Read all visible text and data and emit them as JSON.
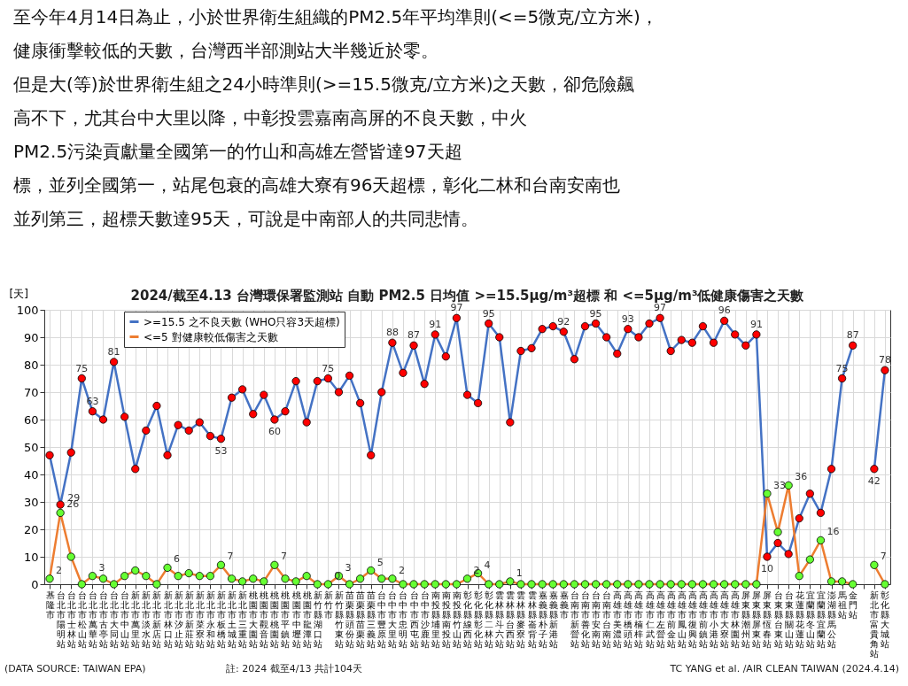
{
  "chart_data": {
    "type": "line",
    "title": "2024/截至4.13 台灣環保署監測站 自動 PM2.5 日均值 >=15.5μg/m³超標 和 <=5μg/m³低健康傷害之天數",
    "subtitle": [
      "至今年4月14日為止，小於世界衛生組織的PM2.5年平均準則(<=5微克/立方米)，",
      "健康衝擊較低的天數，台灣西半部測站大半幾近於零。",
      "但是大(等)於世界衛生組之24小時準則(>=15.5微克/立方米)之天數，卻危險飆",
      "高不下，尤其台中大里以降，中彰投雲嘉南高屏的不良天數，中火",
      "PM2.5污染貢獻量全國第一的竹山和高雄左營皆達97天超",
      "標，並列全國第一，站尾包衰的高雄大寮有96天超標，彰化二林和台南安南也",
      "並列第三，超標天數達95天，可說是中南部人的共同悲情。"
    ],
    "ylabel": "[天]",
    "categories": [
      "基隆市",
      "台北市陽明站",
      "台北市士林站",
      "台北市松山站",
      "台北市萬華站",
      "台北市古亭站",
      "台北市大同站",
      "台北市中山站",
      "新北市萬里站",
      "新北市淡水站",
      "新北市新店站",
      "新北市林口站",
      "新北市汐止站",
      "新北市新莊站",
      "新北市菜寮站",
      "新北市永和站",
      "新北市板橋站",
      "新北市土城站",
      "新北市三重站",
      "桃園市大園站",
      "桃園市觀音站",
      "桃園市桃園站",
      "桃園市平鎮站",
      "桃園市中壢站",
      "桃園市龍潭站",
      "新竹縣湖口站",
      "新竹市",
      "新竹縣竹東站",
      "苗栗縣頭份站",
      "苗栗縣苗栗站",
      "苗栗縣三義站",
      "台中市豐原站",
      "台中市大里站",
      "台中市忠明站",
      "台中市西屯站",
      "台中市沙鹿站",
      "南投縣埔里站",
      "南投縣南投站",
      "南投縣竹山站",
      "彰化縣線西站",
      "彰化縣彰化站",
      "彰化縣二林站",
      "雲林縣斗六站",
      "雲林縣台西站",
      "雲林縣麥寮站",
      "雲林縣崙背站",
      "嘉義縣朴子站",
      "嘉義縣新港站",
      "嘉義市",
      "台南市新營站",
      "台南市善化站",
      "台南市安南站",
      "台南市台南站",
      "高雄市美濃站",
      "高雄市橋頭站",
      "高雄市楠梓站",
      "高雄市仁武站",
      "高雄市左營站",
      "高雄市前金站",
      "高雄市鳳山站",
      "高雄市復興站",
      "高雄市前鎮站",
      "高雄市小港站",
      "高雄市大寮站",
      "高雄市林園站",
      "屏東縣潮州站",
      "屏東縣屏東站",
      "屏東縣恆春站",
      "台東縣台東站",
      "台東縣關山站",
      "花蓮縣花蓮站",
      "宜蘭縣冬山站",
      "宜蘭縣宜蘭站",
      "澎湖縣馬公站",
      "馬祖站",
      "金門站",
      null,
      "新北市富貴角站",
      "彰化縣大城站"
    ],
    "series": [
      {
        "name": ">=15.5 之不良天數 (WHO只容3天超標)",
        "color": "#4472c4",
        "values": [
          47,
          29,
          48,
          75,
          63,
          60,
          81,
          61,
          42,
          56,
          65,
          47,
          58,
          56,
          59,
          54,
          53,
          68,
          71,
          62,
          69,
          60,
          63,
          74,
          59,
          74,
          75,
          70,
          76,
          66,
          47,
          70,
          88,
          77,
          87,
          73,
          91,
          83,
          97,
          69,
          66,
          95,
          90,
          59,
          85,
          86,
          93,
          94,
          92,
          82,
          94,
          95,
          90,
          84,
          93,
          90,
          95,
          97,
          85,
          89,
          88,
          94,
          88,
          96,
          91,
          87,
          91,
          10,
          15,
          11,
          24,
          33,
          26,
          42,
          75,
          87,
          null,
          42,
          78
        ],
        "value_labels": [
          null,
          "29",
          null,
          "75",
          "63",
          null,
          "81",
          null,
          null,
          null,
          null,
          null,
          null,
          null,
          null,
          null,
          "53",
          null,
          null,
          null,
          null,
          "60",
          null,
          null,
          null,
          null,
          "75",
          null,
          null,
          null,
          null,
          null,
          "88",
          null,
          "87",
          null,
          "91",
          null,
          "97",
          null,
          null,
          "95",
          null,
          null,
          null,
          null,
          null,
          null,
          "92",
          null,
          null,
          "95",
          null,
          null,
          "93",
          null,
          null,
          "97",
          null,
          null,
          null,
          null,
          null,
          "96",
          null,
          null,
          "91",
          "10",
          null,
          null,
          null,
          null,
          null,
          null,
          "75",
          "87",
          null,
          "42",
          "78"
        ],
        "colors": [
          "#ff0000",
          "#ff0000",
          "#ff0000",
          "#ff0000",
          "#ff0000",
          "#ff0000",
          "#ff0000",
          "#ff0000",
          "#ff0000",
          "#ff0000",
          "#ff0000",
          "#ff0000",
          "#ff0000",
          "#ff0000",
          "#ff0000",
          "#ff0000",
          "#ff0000",
          "#ff0000",
          "#ff0000",
          "#ff0000",
          "#ff0000",
          "#ff0000",
          "#ff0000",
          "#ff0000",
          "#ff0000",
          "#ff0000",
          "#ff0000",
          "#ff0000",
          "#ff0000",
          "#ff0000",
          "#ff0000",
          "#ff0000",
          "#ff0000",
          "#ff0000",
          "#ff0000",
          "#ff0000",
          "#ff0000",
          "#ff0000",
          "#ff0000",
          "#ff0000",
          "#ff0000",
          "#ff0000",
          "#ff0000",
          "#ff0000",
          "#ff0000",
          "#ff0000",
          "#ff0000",
          "#ff0000",
          "#ff0000",
          "#ff0000",
          "#ff0000",
          "#ff0000",
          "#ff0000",
          "#ff0000",
          "#ff0000",
          "#ff0000",
          "#ff0000",
          "#ff0000",
          "#ff0000",
          "#ff0000",
          "#ff0000",
          "#ff0000",
          "#ff0000",
          "#ff0000",
          "#ff0000",
          "#ff0000",
          "#ff0000",
          "#ff0000",
          "#ff0000",
          "#ff0000",
          "#ff0000",
          "#ff0000",
          "#ff0000",
          "#ff0000",
          "#ff0000",
          "#ff0000",
          null,
          "#ff0000",
          "#ff0000"
        ]
      },
      {
        "name": "<=5 對健康較低傷害之天數",
        "color": "#ed7d31",
        "values": [
          2,
          26,
          10,
          0,
          3,
          2,
          0,
          3,
          5,
          3,
          0,
          6,
          3,
          4,
          3,
          3,
          7,
          2,
          1,
          2,
          1,
          7,
          2,
          1,
          3,
          0,
          0,
          3,
          0,
          2,
          5,
          2,
          2,
          0,
          0,
          0,
          0,
          0,
          0,
          2,
          4,
          0,
          0,
          1,
          0,
          0,
          0,
          0,
          0,
          0,
          0,
          0,
          0,
          0,
          0,
          0,
          0,
          0,
          0,
          0,
          0,
          0,
          0,
          0,
          0,
          0,
          0,
          33,
          19,
          36,
          3,
          9,
          16,
          1,
          1,
          0,
          null,
          7,
          0
        ],
        "value_labels": [
          "2",
          "26",
          null,
          null,
          "3",
          null,
          null,
          null,
          null,
          null,
          null,
          "6",
          null,
          null,
          null,
          null,
          "7",
          null,
          null,
          null,
          null,
          "7",
          null,
          null,
          null,
          null,
          "0",
          "3",
          null,
          null,
          "5",
          null,
          "2",
          null,
          null,
          null,
          null,
          null,
          null,
          "2",
          "4",
          null,
          null,
          "1",
          null,
          null,
          null,
          null,
          null,
          null,
          null,
          null,
          null,
          null,
          null,
          null,
          null,
          null,
          null,
          null,
          null,
          null,
          null,
          null,
          null,
          null,
          null,
          "33",
          null,
          "36",
          null,
          null,
          "16",
          null,
          null,
          null,
          null,
          "7",
          null
        ],
        "colors": [
          "#66ff33",
          "#66ff33",
          "#66ff33",
          "#66ff33",
          "#66ff33",
          "#66ff33",
          "#66ff33",
          "#66ff33",
          "#66ff33",
          "#66ff33",
          "#66ff33",
          "#66ff33",
          "#66ff33",
          "#66ff33",
          "#66ff33",
          "#66ff33",
          "#66ff33",
          "#66ff33",
          "#66ff33",
          "#66ff33",
          "#66ff33",
          "#66ff33",
          "#66ff33",
          "#66ff33",
          "#66ff33",
          "#66ff33",
          "#66ff33",
          "#66ff33",
          "#66ff33",
          "#66ff33",
          "#66ff33",
          "#66ff33",
          "#66ff33",
          "#66ff33",
          "#66ff33",
          "#66ff33",
          "#66ff33",
          "#66ff33",
          "#66ff33",
          "#66ff33",
          "#66ff33",
          "#66ff33",
          "#66ff33",
          "#66ff33",
          "#66ff33",
          "#66ff33",
          "#66ff33",
          "#66ff33",
          "#66ff33",
          "#66ff33",
          "#66ff33",
          "#66ff33",
          "#66ff33",
          "#66ff33",
          "#66ff33",
          "#66ff33",
          "#66ff33",
          "#66ff33",
          "#66ff33",
          "#66ff33",
          "#66ff33",
          "#66ff33",
          "#66ff33",
          "#66ff33",
          "#66ff33",
          "#66ff33",
          "#66ff33",
          "#66ff33",
          "#66ff33",
          "#66ff33",
          "#66ff33",
          "#66ff33",
          "#66ff33",
          "#66ff33",
          "#66ff33",
          "#66ff33",
          null,
          "#66ff33",
          "#66ff33"
        ]
      }
    ],
    "ylim": [
      0,
      100
    ],
    "yticks": [
      0,
      10,
      20,
      30,
      40,
      50,
      60,
      70,
      80,
      90,
      100
    ],
    "grid": true,
    "legend": "top left",
    "marker": "circle",
    "line_style": "solid",
    "annotations": [
      "(DATA SOURCE: TAIWAN EPA)",
      "註: 2024 截至4/13 共計104天",
      "TC YANG et al. /AIR CLEAN TAIWAN (2024.4.14)"
    ]
  }
}
